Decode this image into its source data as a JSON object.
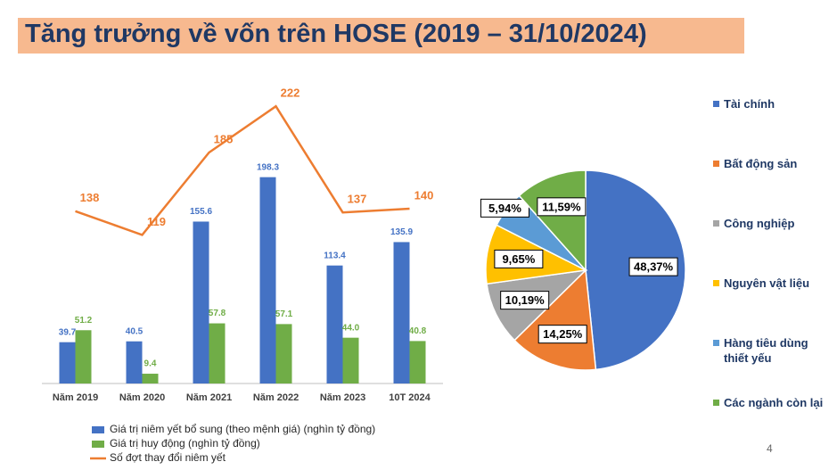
{
  "title": "Tăng trưởng về vốn trên HOSE (2019 – 31/10/2024)",
  "page_number": "4",
  "chart_data": [
    {
      "type": "bar-line",
      "categories": [
        "Năm 2019",
        "Năm 2020",
        "Năm 2021",
        "Năm 2022",
        "Năm 2023",
        "10T 2024"
      ],
      "ylim": [
        0,
        300
      ],
      "y2lim": [
        0,
        250
      ],
      "series": [
        {
          "name": "Giá trị niêm yết bổ sung (theo mệnh giá) (nghìn tỷ đồng)",
          "color": "#4472c4",
          "kind": "bar",
          "values": [
            39.7,
            40.5,
            155.6,
            198.3,
            113.4,
            135.9
          ]
        },
        {
          "name": "Giá trị huy động (nghìn tỷ đồng)",
          "color": "#70ad47",
          "kind": "bar",
          "values": [
            51.2,
            9.4,
            57.8,
            57.1,
            44.0,
            40.8
          ],
          "value_labels": [
            "51.2",
            "9.4",
            "57.8",
            "57.1",
            "44.0",
            "40.8"
          ]
        },
        {
          "name": "Số đợt thay đổi niêm yết",
          "color": "#ed7d31",
          "kind": "line",
          "axis": "y2",
          "values": [
            138,
            119,
            185,
            222,
            137,
            140
          ]
        }
      ]
    },
    {
      "type": "pie",
      "categories": [
        "Tài chính",
        "Bất động sản",
        "Công nghiệp",
        "Nguyên vật liệu",
        "Hàng tiêu dùng thiết yếu",
        "Các ngành còn lại"
      ],
      "values": [
        48.37,
        14.25,
        10.19,
        9.65,
        5.94,
        11.59
      ],
      "value_labels": [
        "48,37%",
        "14,25%",
        "10,19%",
        "9,65%",
        "5,94%",
        "11,59%"
      ],
      "colors": [
        "#4472c4",
        "#ed7d31",
        "#a5a5a5",
        "#ffc000",
        "#5b9bd5",
        "#70ad47"
      ]
    }
  ]
}
